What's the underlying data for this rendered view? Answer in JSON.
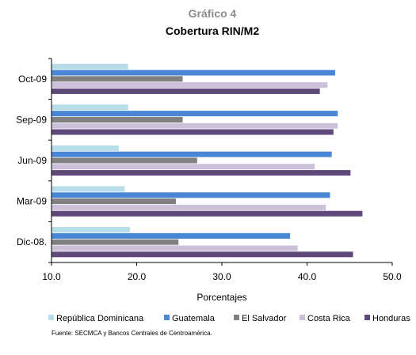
{
  "chart_data": {
    "type": "bar",
    "orientation": "horizontal",
    "title": "Gráfico 4",
    "subtitle": "Cobertura RIN/M2",
    "xlabel": "Porcentajes",
    "ylabel": "",
    "xlim": [
      10,
      50
    ],
    "x_ticks": [
      "10.0",
      "20.0",
      "30.0",
      "40.0",
      "50.0"
    ],
    "categories": [
      "Oct-09",
      "Sep-09",
      "Jun-09",
      "Mar-09",
      "Dic-08."
    ],
    "series": [
      {
        "name": "República Dominicana",
        "color": "#b7dde8",
        "values": [
          19.0,
          19.0,
          17.9,
          18.6,
          19.2
        ]
      },
      {
        "name": "Guatemala",
        "color": "#4a86d6",
        "values": [
          43.3,
          43.6,
          42.9,
          42.7,
          38.0
        ]
      },
      {
        "name": "El Salvador",
        "color": "#808080",
        "values": [
          25.4,
          25.4,
          27.1,
          24.6,
          24.9
        ]
      },
      {
        "name": "Costa Rica",
        "color": "#ccc0da",
        "values": [
          42.4,
          43.6,
          40.9,
          42.2,
          38.9
        ]
      },
      {
        "name": "Honduras",
        "color": "#5f497a",
        "values": [
          41.5,
          43.1,
          45.1,
          46.5,
          45.4
        ]
      }
    ],
    "grid": false,
    "legend_position": "bottom",
    "source": "Fuente: SECMCA y Bancos Centrales de Centroamérica."
  }
}
